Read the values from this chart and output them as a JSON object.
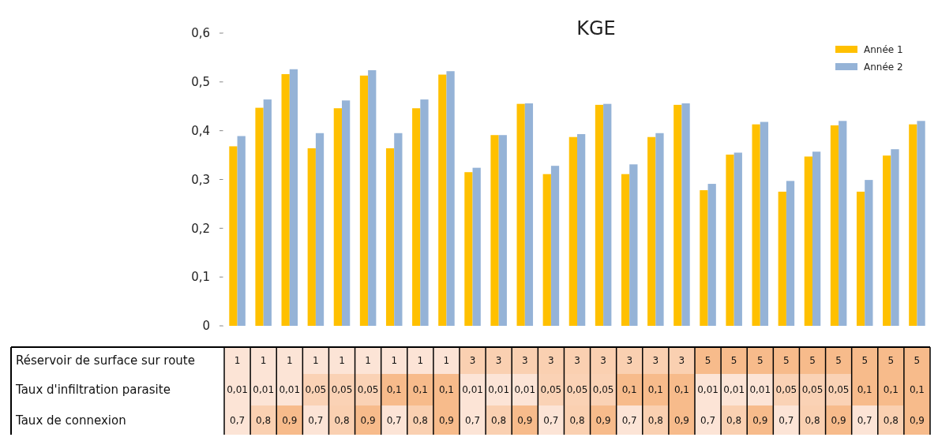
{
  "chart_data": [
    {
      "type": "bar",
      "title": "KGE",
      "categories": [
        null,
        null,
        null,
        null,
        null,
        null,
        null,
        null,
        null,
        null,
        null,
        null,
        null,
        null,
        null,
        null,
        null,
        null,
        null,
        null,
        null,
        null,
        null,
        null,
        null,
        null,
        null
      ],
      "series": [
        {
          "name": "Année 1",
          "color": "#ffc000",
          "values": [
            0.368,
            0.447,
            0.516,
            0.364,
            0.446,
            0.513,
            0.364,
            0.446,
            0.515,
            0.315,
            0.391,
            0.455,
            0.311,
            0.387,
            0.453,
            0.311,
            0.387,
            0.453,
            0.278,
            0.351,
            0.413,
            0.275,
            0.347,
            0.411,
            0.275,
            0.349,
            0.413
          ]
        },
        {
          "name": "Année 2",
          "color": "#95b3d7",
          "values": [
            0.389,
            0.464,
            0.526,
            0.395,
            0.462,
            0.524,
            0.395,
            0.464,
            0.522,
            0.324,
            0.391,
            0.456,
            0.328,
            0.393,
            0.455,
            0.331,
            0.395,
            0.456,
            0.291,
            0.355,
            0.418,
            0.297,
            0.357,
            0.42,
            0.299,
            0.362,
            0.42
          ]
        }
      ],
      "ylim": [
        0,
        0.6
      ],
      "yticks": [
        0,
        {
          "value": 0.1,
          "label": "0,1"
        },
        {
          "value": 0.2,
          "label": "0,2"
        },
        {
          "value": 0.3,
          "label": "0,3"
        },
        {
          "value": 0.4,
          "label": "0,4"
        },
        {
          "value": 0.5,
          "label": "0,5"
        },
        {
          "value": 0.6,
          "label": "0,6"
        }
      ],
      "legend": "top right",
      "tick_labels": "y"
    },
    {
      "type": "heatmap",
      "categories": [
        null,
        null,
        null,
        null,
        null,
        null,
        null,
        null,
        null,
        null,
        null,
        null,
        null,
        null,
        null,
        null,
        null,
        null,
        null,
        null,
        null,
        null,
        null,
        null,
        null,
        null,
        null
      ],
      "y_categories": [
        "Réservoir de surface sur route",
        "Taux d'infiltration parasite",
        "Taux de connexion"
      ],
      "cells": [
        [
          1,
          1,
          1,
          1,
          1,
          1,
          1,
          1,
          1,
          3,
          3,
          3,
          3,
          3,
          3,
          3,
          3,
          3,
          5,
          5,
          5,
          5,
          5,
          5,
          5,
          5,
          5
        ],
        [
          0.01,
          0.01,
          0.01,
          0.05,
          0.05,
          0.05,
          0.1,
          0.1,
          0.1,
          0.01,
          0.01,
          0.01,
          0.05,
          0.05,
          0.05,
          0.1,
          0.1,
          0.1,
          0.01,
          0.01,
          0.01,
          0.05,
          0.05,
          0.05,
          0.1,
          0.1,
          0.1
        ],
        [
          0.7,
          0.8,
          0.9,
          0.7,
          0.8,
          0.9,
          0.7,
          0.8,
          0.9,
          0.7,
          0.8,
          0.9,
          0.7,
          0.8,
          0.9,
          0.7,
          0.8,
          0.9,
          0.7,
          0.8,
          0.9,
          0.7,
          0.8,
          0.9,
          0.7,
          0.8,
          0.9
        ]
      ],
      "cell_labels": [
        [
          "1",
          "1",
          "1",
          "1",
          "1",
          "1",
          "1",
          "1",
          "1",
          "3",
          "3",
          "3",
          "3",
          "3",
          "3",
          "3",
          "3",
          "3",
          "5",
          "5",
          "5",
          "5",
          "5",
          "5",
          "5",
          "5",
          "5"
        ],
        [
          "0,01",
          "0,01",
          "0,01",
          "0,05",
          "0,05",
          "0,05",
          "0,1",
          "0,1",
          "0,1",
          "0,01",
          "0,01",
          "0,01",
          "0,05",
          "0,05",
          "0,05",
          "0,1",
          "0,1",
          "0,1",
          "0,01",
          "0,01",
          "0,01",
          "0,05",
          "0,05",
          "0,05",
          "0,1",
          "0,1",
          "0,1"
        ],
        [
          "0,7",
          "0,8",
          "0,9",
          "0,7",
          "0,8",
          "0,9",
          "0,7",
          "0,8",
          "0,9",
          "0,7",
          "0,8",
          "0,9",
          "0,7",
          "0,8",
          "0,9",
          "0,7",
          "0,8",
          "0,9",
          "0,7",
          "0,8",
          "0,9",
          "0,7",
          "0,8",
          "0,9",
          "0,7",
          "0,8",
          "0,9"
        ]
      ],
      "tick_labels": "y"
    }
  ]
}
